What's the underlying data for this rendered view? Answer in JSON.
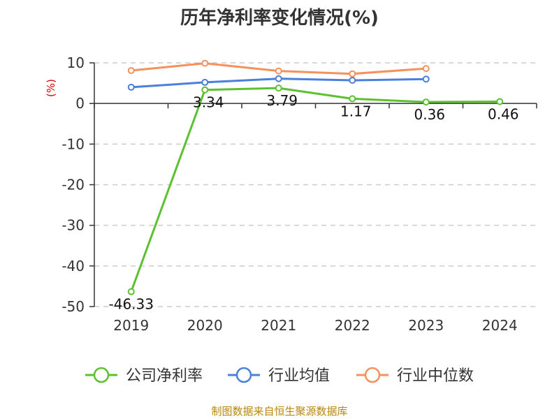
{
  "title": "历年净利率变化情况(%)",
  "source": "制图数据来自恒生聚源数据库",
  "chart_data": {
    "type": "line",
    "title": "历年净利率变化情况(%)",
    "ylabel": "(%)",
    "xlabel": "",
    "ylim": [
      -50,
      10
    ],
    "yticks": [
      10,
      0,
      -10,
      -20,
      -30,
      -40,
      -50
    ],
    "categories": [
      "2019",
      "2020",
      "2021",
      "2022",
      "2023",
      "2024"
    ],
    "grid": true,
    "legend_position": "bottom",
    "series": [
      {
        "name": "公司净利率",
        "color": "#5cc130",
        "values": [
          -46.33,
          3.34,
          3.79,
          1.17,
          0.36,
          0.46
        ],
        "labels": [
          "-46.33",
          "3.34",
          "3.79",
          "1.17",
          "0.36",
          "0.46"
        ]
      },
      {
        "name": "行业均值",
        "color": "#4a7fdc",
        "values": [
          4.0,
          5.2,
          6.1,
          5.7,
          6.0,
          null
        ]
      },
      {
        "name": "行业中位数",
        "color": "#f6905c",
        "values": [
          8.1,
          9.9,
          8.0,
          7.3,
          8.6,
          null
        ]
      }
    ]
  }
}
